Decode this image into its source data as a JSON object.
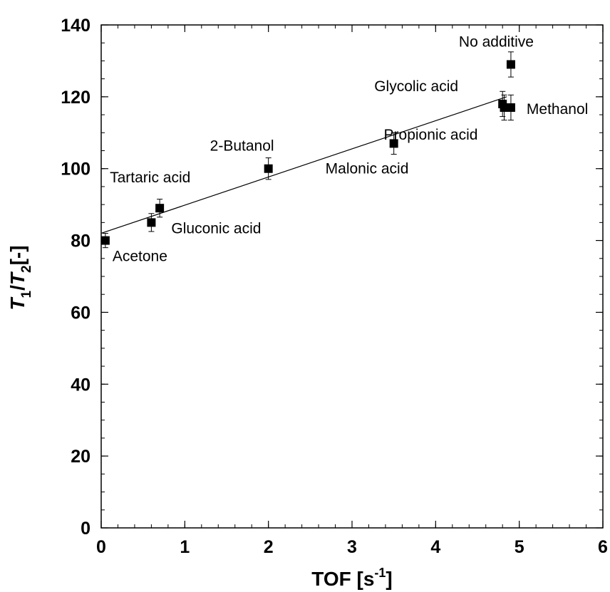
{
  "chart_data": {
    "type": "scatter",
    "title": "",
    "xlabel": {
      "main": "TOF [s",
      "sup": "-1",
      "end": "]"
    },
    "ylabel": {
      "t1": "T",
      "sub1": "1",
      "slash": "/",
      "t2": "T",
      "sub2": "2",
      "end": "[-]"
    },
    "xlim": [
      0,
      6
    ],
    "ylim": [
      0,
      140
    ],
    "x_ticks": [
      0,
      1,
      2,
      3,
      4,
      5,
      6
    ],
    "y_ticks": [
      0,
      20,
      40,
      60,
      80,
      100,
      120,
      140
    ],
    "grid": false,
    "points": [
      {
        "label": "Acetone",
        "x": 0.05,
        "y": 80,
        "err": 2
      },
      {
        "label": "Gluconic acid",
        "x": 0.6,
        "y": 85,
        "err": 2.5
      },
      {
        "label": "Tartaric acid",
        "x": 0.7,
        "y": 89,
        "err": 2.5
      },
      {
        "label": "2-Butanol",
        "x": 2.0,
        "y": 100,
        "err": 3
      },
      {
        "label": "Malonic acid",
        "x": 3.5,
        "y": 107,
        "err": 3
      },
      {
        "label": "Glycolic acid",
        "x": 4.8,
        "y": 118,
        "err": 3.5
      },
      {
        "label": "Propionic acid",
        "x": 4.82,
        "y": 117,
        "err": 3.5
      },
      {
        "label": "Methanol",
        "x": 4.9,
        "y": 117,
        "err": 3.5
      },
      {
        "label": "No additive",
        "x": 4.9,
        "y": 129,
        "err": 3.5
      }
    ],
    "fit_line": {
      "x": [
        0,
        4.85
      ],
      "y": [
        82,
        120
      ]
    }
  }
}
